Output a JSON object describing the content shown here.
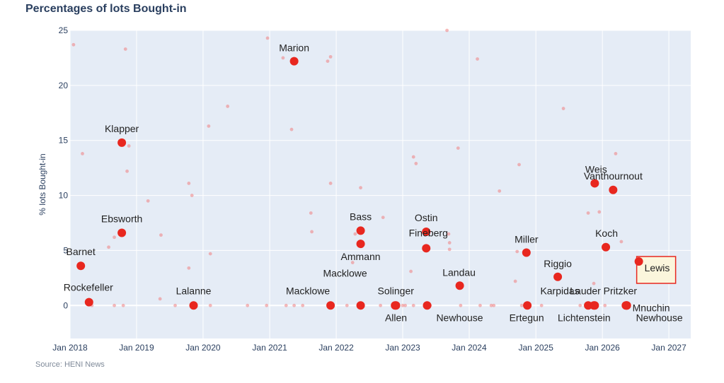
{
  "title": "Percentages of lots Bought-in",
  "source": "Source: HENI News",
  "chart_data": {
    "type": "scatter",
    "ylabel": "% lots Bought-in",
    "xlabel": "",
    "ylim": [
      -3,
      25
    ],
    "xlim": [
      "2018-01-01",
      "2027-05-01"
    ],
    "x_ticks": [
      "Jan 2018",
      "Jan 2019",
      "Jan 2020",
      "Jan 2021",
      "Jan 2022",
      "Jan 2023",
      "Jan 2024",
      "Jan 2025",
      "Jan 2026",
      "Jan 2027"
    ],
    "y_ticks": [
      0,
      5,
      10,
      15,
      20,
      25
    ],
    "grid": true,
    "colors": {
      "background": "#e5ecf6",
      "highlight": "#e8271f",
      "faint": "#f08080",
      "zero_line": "#ffffff",
      "callout_fill": "#fbf6dc",
      "callout_border": "#e8271f"
    },
    "series": [
      {
        "points": [
          {
            "x": "2018-04-15",
            "y": 0.3,
            "label": "Rockefeller"
          },
          {
            "x": "2018-03-01",
            "y": 3.6,
            "label": "Barnet"
          },
          {
            "x": "2018-10-12",
            "y": 6.6,
            "label": "Ebsworth"
          },
          {
            "x": "2018-10-12",
            "y": 14.8,
            "label": "Klapper"
          },
          {
            "x": "2019-11-10",
            "y": 0,
            "label": "Lalanne"
          },
          {
            "x": "2021-05-15",
            "y": 22.2,
            "label": "Marion"
          },
          {
            "x": "2021-12-01",
            "y": 0,
            "label": "Macklowe"
          },
          {
            "x": "2022-05-15",
            "y": 0,
            "label": "Macklowe"
          },
          {
            "x": "2022-05-15",
            "y": 6.8,
            "label": "Bass"
          },
          {
            "x": "2022-05-15",
            "y": 5.6,
            "label": "Ammann"
          },
          {
            "x": "2022-11-20",
            "y": 0,
            "label": "Solinger"
          },
          {
            "x": "2022-11-25",
            "y": 0,
            "label": "Allen"
          },
          {
            "x": "2023-05-10",
            "y": 6.7,
            "label": "Ostin"
          },
          {
            "x": "2023-05-10",
            "y": 5.2,
            "label": "Fineberg"
          },
          {
            "x": "2023-05-15",
            "y": 0,
            "label": "Newhouse"
          },
          {
            "x": "2023-11-10",
            "y": 1.8,
            "label": "Landau"
          },
          {
            "x": "2024-11-10",
            "y": 4.8,
            "label": "Miller"
          },
          {
            "x": "2024-11-15",
            "y": 0,
            "label": "Ertegun"
          },
          {
            "x": "2025-05-01",
            "y": 2.6,
            "label": "Riggio"
          },
          {
            "x": "2025-10-15",
            "y": 0,
            "label": "Karpidas"
          },
          {
            "x": "2025-11-15",
            "y": 0,
            "label": "Lauder"
          },
          {
            "x": "2025-11-20",
            "y": 0,
            "label": "Lichtenstein"
          },
          {
            "x": "2025-11-20",
            "y": 11.1,
            "label": "Weis"
          },
          {
            "x": "2026-03-01",
            "y": 10.5,
            "label": "Vanthournout"
          },
          {
            "x": "2026-01-20",
            "y": 5.3,
            "label": "Koch"
          },
          {
            "x": "2026-05-10",
            "y": 0,
            "label": "Pritzker"
          },
          {
            "x": "2026-05-15",
            "y": 0,
            "label": "Mnuchin"
          },
          {
            "x": "2026-05-15",
            "y": 0,
            "label": "Newhouse"
          },
          {
            "x": "2026-07-20",
            "y": 4.0,
            "label": "Lewis"
          }
        ]
      },
      {
        "points": [
          {
            "x": "2018-01-20",
            "y": 23.7
          },
          {
            "x": "2018-03-10",
            "y": 13.8
          },
          {
            "x": "2018-05-01",
            "y": 0
          },
          {
            "x": "2018-08-01",
            "y": 5.3
          },
          {
            "x": "2018-09-01",
            "y": 6.2
          },
          {
            "x": "2018-09-01",
            "y": 0
          },
          {
            "x": "2018-10-20",
            "y": 0
          },
          {
            "x": "2018-11-01",
            "y": 23.3
          },
          {
            "x": "2018-11-10",
            "y": 12.2
          },
          {
            "x": "2018-11-20",
            "y": 14.5
          },
          {
            "x": "2019-03-05",
            "y": 9.5
          },
          {
            "x": "2019-05-10",
            "y": 0.6
          },
          {
            "x": "2019-05-15",
            "y": 6.4
          },
          {
            "x": "2019-08-01",
            "y": 0
          },
          {
            "x": "2019-10-15",
            "y": 11.1
          },
          {
            "x": "2019-10-15",
            "y": 3.4
          },
          {
            "x": "2019-11-01",
            "y": 10.0
          },
          {
            "x": "2020-02-01",
            "y": 16.3
          },
          {
            "x": "2020-02-10",
            "y": 0
          },
          {
            "x": "2020-02-10",
            "y": 4.7
          },
          {
            "x": "2020-05-15",
            "y": 18.1
          },
          {
            "x": "2020-09-01",
            "y": 0
          },
          {
            "x": "2020-12-15",
            "y": 0
          },
          {
            "x": "2020-12-20",
            "y": 24.3
          },
          {
            "x": "2021-03-15",
            "y": 22.5
          },
          {
            "x": "2021-04-01",
            "y": 0
          },
          {
            "x": "2021-05-01",
            "y": 16.0
          },
          {
            "x": "2021-05-15",
            "y": 0
          },
          {
            "x": "2021-07-01",
            "y": 0
          },
          {
            "x": "2021-08-15",
            "y": 8.4
          },
          {
            "x": "2021-08-20",
            "y": 6.7
          },
          {
            "x": "2021-11-15",
            "y": 22.2
          },
          {
            "x": "2021-12-01",
            "y": 22.6
          },
          {
            "x": "2021-12-01",
            "y": 11.1
          },
          {
            "x": "2022-03-01",
            "y": 0
          },
          {
            "x": "2022-04-01",
            "y": 3.9
          },
          {
            "x": "2022-04-15",
            "y": 6.5
          },
          {
            "x": "2022-05-15",
            "y": 10.7
          },
          {
            "x": "2022-09-01",
            "y": 0
          },
          {
            "x": "2022-09-15",
            "y": 8.0
          },
          {
            "x": "2023-01-01",
            "y": 0
          },
          {
            "x": "2023-01-15",
            "y": 0
          },
          {
            "x": "2023-02-15",
            "y": 3.1
          },
          {
            "x": "2023-03-01",
            "y": 13.5
          },
          {
            "x": "2023-03-01",
            "y": 0
          },
          {
            "x": "2023-03-15",
            "y": 12.9
          },
          {
            "x": "2023-06-01",
            "y": 0
          },
          {
            "x": "2023-09-01",
            "y": 25.0
          },
          {
            "x": "2023-09-10",
            "y": 6.5
          },
          {
            "x": "2023-09-15",
            "y": 5.7
          },
          {
            "x": "2023-09-15",
            "y": 5.1
          },
          {
            "x": "2023-11-01",
            "y": 14.3
          },
          {
            "x": "2023-11-15",
            "y": 0
          },
          {
            "x": "2024-02-15",
            "y": 22.4
          },
          {
            "x": "2024-03-01",
            "y": 0
          },
          {
            "x": "2024-05-01",
            "y": 0
          },
          {
            "x": "2024-05-15",
            "y": 0
          },
          {
            "x": "2024-06-15",
            "y": 10.4
          },
          {
            "x": "2024-09-10",
            "y": 2.2
          },
          {
            "x": "2024-10-01",
            "y": 12.8
          },
          {
            "x": "2024-10-15",
            "y": 0
          },
          {
            "x": "2025-06-01",
            "y": 17.9
          },
          {
            "x": "2025-09-01",
            "y": 0
          },
          {
            "x": "2025-10-15",
            "y": 8.4
          },
          {
            "x": "2025-11-15",
            "y": 2.0
          },
          {
            "x": "2025-12-15",
            "y": 8.5
          },
          {
            "x": "2026-01-15",
            "y": 0
          },
          {
            "x": "2026-03-15",
            "y": 13.8
          },
          {
            "x": "2026-04-15",
            "y": 5.8
          },
          {
            "x": "2025-02-01",
            "y": 0
          },
          {
            "x": "2024-09-20",
            "y": 4.9
          }
        ]
      }
    ]
  }
}
